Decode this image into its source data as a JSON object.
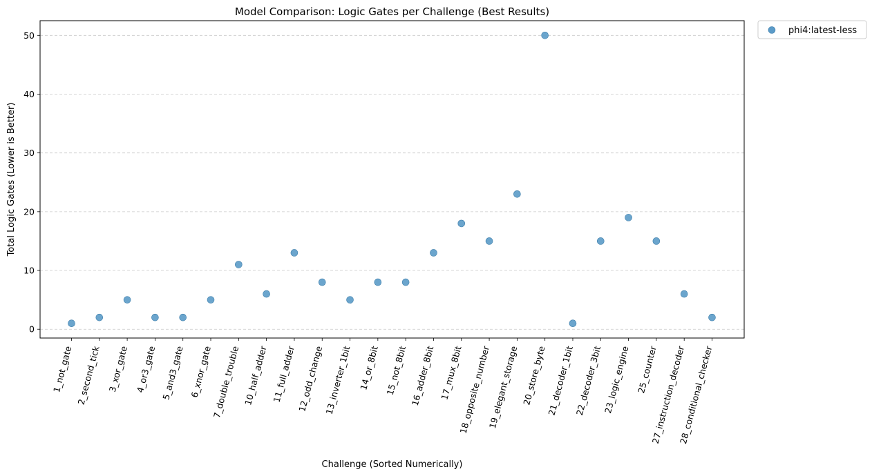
{
  "chart_data": {
    "type": "scatter",
    "title": "Model Comparison: Logic Gates per Challenge (Best Results)",
    "xlabel": "Challenge (Sorted Numerically)",
    "ylabel": "Total Logic Gates (Lower is Better)",
    "ylim": [
      -1.5,
      52.5
    ],
    "yticks": [
      0,
      10,
      20,
      30,
      40,
      50
    ],
    "grid": "y-dashed",
    "legend_placement": "outside-top-right",
    "categories": [
      "1_not_gate",
      "2_second_tick",
      "3_xor_gate",
      "4_or3_gate",
      "5_and3_gate",
      "6_xnor_gate",
      "7_double_trouble",
      "10_half_adder",
      "11_full_adder",
      "12_odd_change",
      "13_inverter_1bit",
      "14_or_8bit",
      "15_not_8bit",
      "16_adder_8bit",
      "17_mux_8bit",
      "18_opposite_number",
      "19_elegant_storage",
      "20_store_byte",
      "21_decoder_1bit",
      "22_decoder_3bit",
      "23_logic_engine",
      "25_counter",
      "27_instruction_decoder",
      "28_conditional_checker"
    ],
    "series": [
      {
        "name": "phi4:latest-less",
        "color": "#5b9bc8",
        "values": [
          1,
          2,
          5,
          2,
          2,
          5,
          11,
          6,
          13,
          8,
          5,
          8,
          8,
          13,
          18,
          15,
          23,
          50,
          1,
          15,
          19,
          15,
          6,
          2
        ]
      }
    ]
  }
}
